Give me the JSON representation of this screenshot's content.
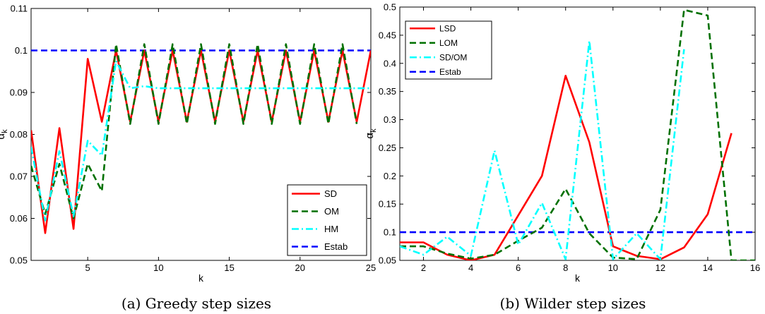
{
  "chart_data": [
    {
      "type": "line",
      "caption": "(a)  Greedy step sizes",
      "xlabel": "k",
      "ylabel": "α",
      "ylabel_sub": "k",
      "xlim": [
        1,
        25
      ],
      "ylim": [
        0.05,
        0.11
      ],
      "xticks": [
        5,
        10,
        15,
        20,
        25
      ],
      "yticks": [
        0.05,
        0.06,
        0.07,
        0.08,
        0.09,
        0.1,
        0.11
      ],
      "ytick_labels": [
        "0.05",
        "0.06",
        "0.07",
        "0.08",
        "0.09",
        "0.1",
        "0.11"
      ],
      "grid": false,
      "legend_position": "bottom-right",
      "series": [
        {
          "name": "SD",
          "color": "#ff0000",
          "style": "solid",
          "x": [
            1,
            2,
            3,
            4,
            5,
            6,
            7,
            8,
            9,
            10,
            11,
            12,
            13,
            14,
            15,
            16,
            17,
            18,
            19,
            20,
            21,
            22,
            23,
            24,
            25
          ],
          "y": [
            0.081,
            0.0565,
            0.0815,
            0.0575,
            0.098,
            0.083,
            0.1,
            0.083,
            0.1,
            0.083,
            0.1,
            0.083,
            0.1,
            0.083,
            0.1,
            0.083,
            0.1,
            0.083,
            0.1,
            0.083,
            0.1,
            0.083,
            0.1,
            0.083,
            0.1
          ]
        },
        {
          "name": "OM",
          "color": "#007000",
          "style": "dashed",
          "x": [
            1,
            2,
            3,
            4,
            5,
            6,
            7,
            8,
            9,
            10,
            11,
            12,
            13,
            14,
            15,
            16,
            17,
            18,
            19,
            20,
            21,
            22,
            23,
            24
          ],
          "y": [
            0.0725,
            0.061,
            0.073,
            0.06,
            0.073,
            0.0665,
            0.1015,
            0.0825,
            0.1015,
            0.0825,
            0.1015,
            0.0825,
            0.1015,
            0.0825,
            0.1015,
            0.0825,
            0.1015,
            0.0825,
            0.1015,
            0.0825,
            0.1015,
            0.0825,
            0.1015,
            0.0825
          ]
        },
        {
          "name": "HM",
          "color": "#00ffff",
          "style": "dashdot",
          "x": [
            1,
            2,
            3,
            4,
            5,
            6,
            7,
            8,
            9,
            10,
            11,
            12,
            13,
            14,
            15,
            16,
            17,
            18,
            19,
            20,
            21,
            22,
            23,
            24,
            25
          ],
          "y": [
            0.077,
            0.0595,
            0.076,
            0.0605,
            0.0785,
            0.075,
            0.0975,
            0.091,
            0.0915,
            0.091,
            0.091,
            0.091,
            0.091,
            0.091,
            0.091,
            0.091,
            0.091,
            0.091,
            0.091,
            0.091,
            0.091,
            0.091,
            0.091,
            0.091,
            0.091
          ]
        },
        {
          "name": "Estab",
          "color": "#0000ff",
          "style": "dashed",
          "x": [
            1,
            25
          ],
          "y": [
            0.1,
            0.1
          ]
        }
      ]
    },
    {
      "type": "line",
      "caption": "(b)  Wilder step sizes",
      "xlabel": "k",
      "ylabel": "α",
      "ylabel_sub": "k",
      "xlim": [
        1,
        16
      ],
      "ylim": [
        0.05,
        0.5
      ],
      "xticks": [
        2,
        4,
        6,
        8,
        10,
        12,
        14,
        16
      ],
      "yticks": [
        0.05,
        0.1,
        0.15,
        0.2,
        0.25,
        0.3,
        0.35,
        0.4,
        0.45,
        0.5
      ],
      "ytick_labels": [
        "0.05",
        "0.1",
        "0.15",
        "0.2",
        "0.25",
        "0.3",
        "0.35",
        "0.4",
        "0.45",
        "0.5"
      ],
      "grid": false,
      "legend_position": "top-left",
      "series": [
        {
          "name": "LSD",
          "color": "#ff0000",
          "style": "solid",
          "x": [
            1,
            2,
            3,
            4,
            5,
            6,
            7,
            8,
            9,
            10,
            11,
            12,
            13,
            14,
            15
          ],
          "y": [
            0.082,
            0.082,
            0.06,
            0.05,
            0.06,
            0.13,
            0.2,
            0.378,
            0.26,
            0.075,
            0.058,
            0.052,
            0.073,
            0.132,
            0.276
          ]
        },
        {
          "name": "LOM",
          "color": "#007000",
          "style": "dashed",
          "x": [
            1,
            2,
            3,
            4,
            5,
            6,
            7,
            8,
            9,
            10,
            11,
            12,
            13,
            14,
            15,
            16
          ],
          "y": [
            0.075,
            0.075,
            0.062,
            0.053,
            0.06,
            0.085,
            0.108,
            0.177,
            0.098,
            0.055,
            0.052,
            0.14,
            0.495,
            0.485,
            0.05,
            0.05
          ]
        },
        {
          "name": "SD/OM",
          "color": "#00ffff",
          "style": "dashdot",
          "x": [
            1,
            2,
            3,
            4,
            5,
            6,
            7,
            8,
            9,
            10,
            11,
            12,
            13
          ],
          "y": [
            0.075,
            0.06,
            0.092,
            0.058,
            0.245,
            0.078,
            0.152,
            0.052,
            0.44,
            0.052,
            0.098,
            0.052,
            0.425
          ]
        },
        {
          "name": "Estab",
          "color": "#0000ff",
          "style": "dashed",
          "x": [
            1,
            16
          ],
          "y": [
            0.1,
            0.1
          ]
        }
      ]
    }
  ]
}
